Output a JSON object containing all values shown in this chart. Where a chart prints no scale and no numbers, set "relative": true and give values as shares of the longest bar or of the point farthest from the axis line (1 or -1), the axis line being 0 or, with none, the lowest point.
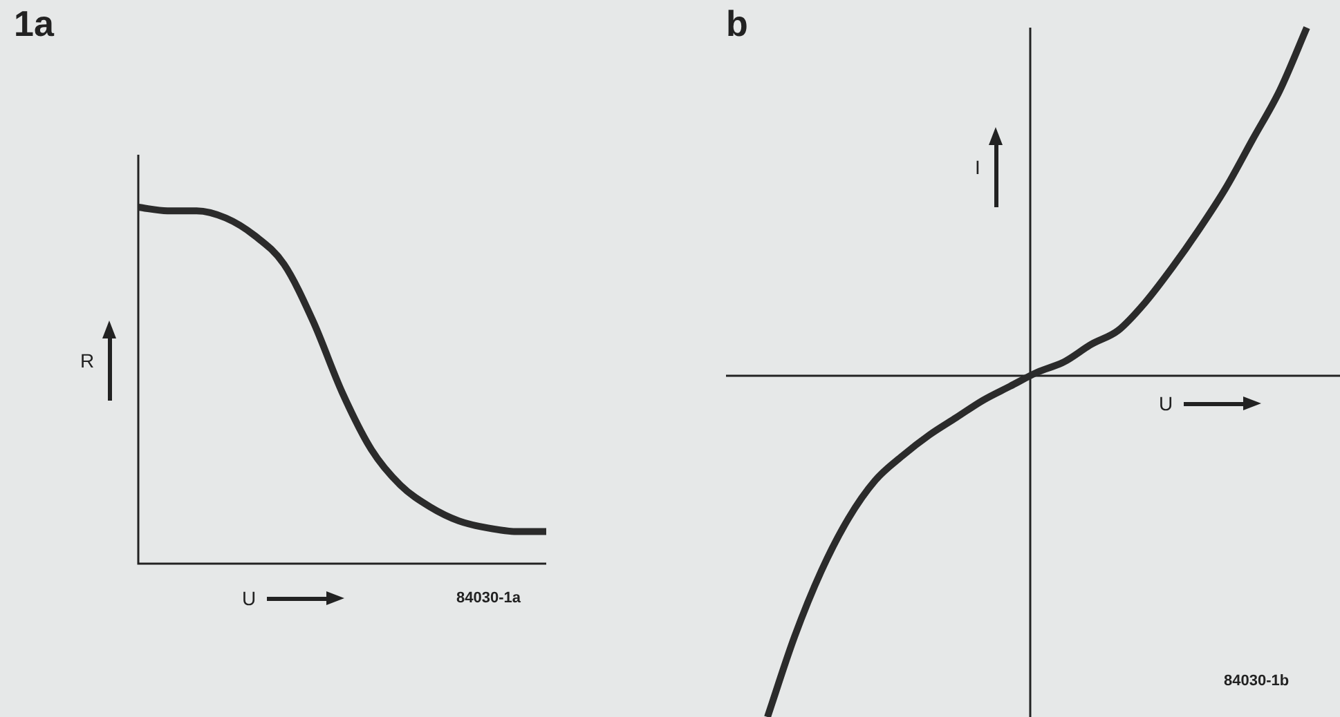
{
  "chart_data": [
    {
      "type": "line",
      "title": "1a",
      "xlabel": "U",
      "ylabel": "R",
      "relative": true,
      "legend": false,
      "marker": "none",
      "annotations": [
        "84030-1a"
      ],
      "categories": [
        null,
        null,
        null,
        null,
        null,
        null,
        null,
        null,
        null,
        null,
        null,
        null,
        null,
        null,
        null
      ],
      "series": [
        {
          "color": "#2b2b2b",
          "values": [
            1.0,
            0.99,
            0.99,
            0.97,
            0.92,
            0.84,
            0.68,
            0.48,
            0.32,
            0.22,
            0.16,
            0.12,
            0.1,
            0.09,
            0.09
          ]
        }
      ]
    },
    {
      "type": "line",
      "title": "b",
      "xlabel": "U",
      "ylabel": "I",
      "relative": true,
      "legend": false,
      "marker": "none",
      "annotations": [
        "84030-1b"
      ],
      "categories": [
        null,
        null,
        null,
        null,
        null,
        null,
        null,
        null,
        null,
        null,
        null,
        null,
        null,
        null,
        null,
        null,
        null,
        null,
        null,
        null,
        null
      ],
      "series": [
        {
          "color": "#2b2b2b",
          "values": [
            -0.98,
            -0.75,
            -0.56,
            -0.41,
            -0.3,
            -0.23,
            -0.17,
            -0.12,
            -0.07,
            -0.03,
            0.01,
            0.04,
            0.09,
            0.13,
            0.21,
            0.31,
            0.42,
            0.54,
            0.68,
            0.82,
            1.0
          ]
        }
      ]
    }
  ]
}
